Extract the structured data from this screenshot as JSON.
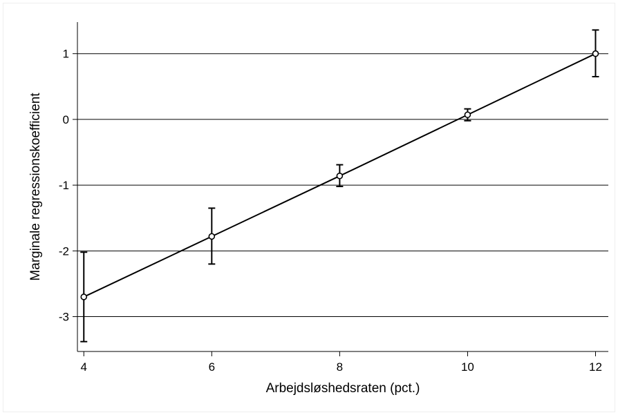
{
  "chart_data": {
    "type": "line",
    "title": "",
    "xlabel": "Arbejdsløshedsraten (pct.)",
    "ylabel": "Marginale regressionskoefficient",
    "x": [
      4,
      6,
      8,
      10,
      12
    ],
    "series": [
      {
        "values": [
          -2.7,
          -1.78,
          -0.86,
          0.07,
          1.0
        ],
        "ci_low": [
          -3.38,
          -2.2,
          -1.02,
          -0.02,
          0.65
        ],
        "ci_high": [
          -2.02,
          -1.35,
          -0.69,
          0.16,
          1.36
        ]
      }
    ],
    "xlim": [
      3.9,
      12.2
    ],
    "ylim": [
      -3.53,
      1.48
    ],
    "xticks": [
      4,
      6,
      8,
      10,
      12
    ],
    "yticks": [
      -3,
      -2,
      -1,
      0,
      1
    ],
    "xtick_labels": [
      "4",
      "6",
      "8",
      "10",
      "12"
    ],
    "ytick_labels": [
      "-3",
      "-2",
      "-1",
      "0",
      "1"
    ],
    "grid": "horizontal",
    "legend": "none",
    "colors": {
      "background": "#ffffff",
      "line": "#000000",
      "grid": "#000000",
      "axis": "#000000"
    }
  }
}
